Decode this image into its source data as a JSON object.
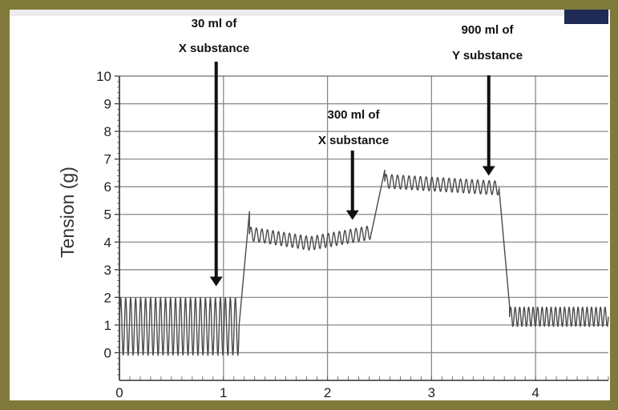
{
  "chart_data": {
    "type": "line",
    "title": "",
    "xlabel": "",
    "ylabel": "Tension (g)",
    "xlim": [
      0,
      4.7
    ],
    "ylim": [
      -1,
      10
    ],
    "x_ticks": [
      0,
      1,
      2,
      3,
      4
    ],
    "x_tick_labels": [
      "0",
      "1",
      "2",
      "3",
      "4"
    ],
    "y_ticks": [
      0,
      1,
      2,
      3,
      4,
      5,
      6,
      7,
      8,
      9,
      10
    ],
    "y_tick_labels": [
      "0",
      "1",
      "2",
      "3",
      "4",
      "5",
      "6",
      "7",
      "8",
      "9",
      "10"
    ],
    "grid": true,
    "segments": [
      {
        "x_start": 0.0,
        "x_end": 1.15,
        "baseline": 0.95,
        "amplitude": 1.05,
        "cycles": 24,
        "note": ""
      },
      {
        "x_start": 1.15,
        "x_end": 1.25,
        "from": 1.0,
        "to": 5.1
      },
      {
        "x_start": 1.25,
        "x_end": 2.42,
        "baseline_start": 4.3,
        "baseline_mid": 3.95,
        "baseline_end": 4.35,
        "amplitude": 0.25,
        "cycles": 22
      },
      {
        "x_start": 2.42,
        "x_end": 2.55,
        "from": 4.3,
        "to": 6.6
      },
      {
        "x_start": 2.55,
        "x_end": 3.65,
        "baseline_start": 6.2,
        "baseline_end": 5.95,
        "amplitude": 0.25,
        "cycles": 20
      },
      {
        "x_start": 3.65,
        "x_end": 3.75,
        "from": 5.9,
        "to": 1.7
      },
      {
        "x_start": 3.75,
        "x_end": 4.7,
        "baseline": 1.3,
        "amplitude": 0.35,
        "cycles": 22
      }
    ],
    "annotations": [
      {
        "line1": "30 ml of",
        "line2": "X substance",
        "x": 0.93,
        "arrow_tip_y": 2.4
      },
      {
        "line1": "300 ml of",
        "line2": "X substance",
        "x": 2.24,
        "arrow_tip_y": 4.8
      },
      {
        "line1": "900 ml of",
        "line2": "Y substance",
        "x": 3.55,
        "arrow_tip_y": 6.4
      }
    ],
    "line_color": "#4a4a4a",
    "grid_color": "#8a8a8a",
    "accent_frame_color": "#7f7a3a"
  }
}
